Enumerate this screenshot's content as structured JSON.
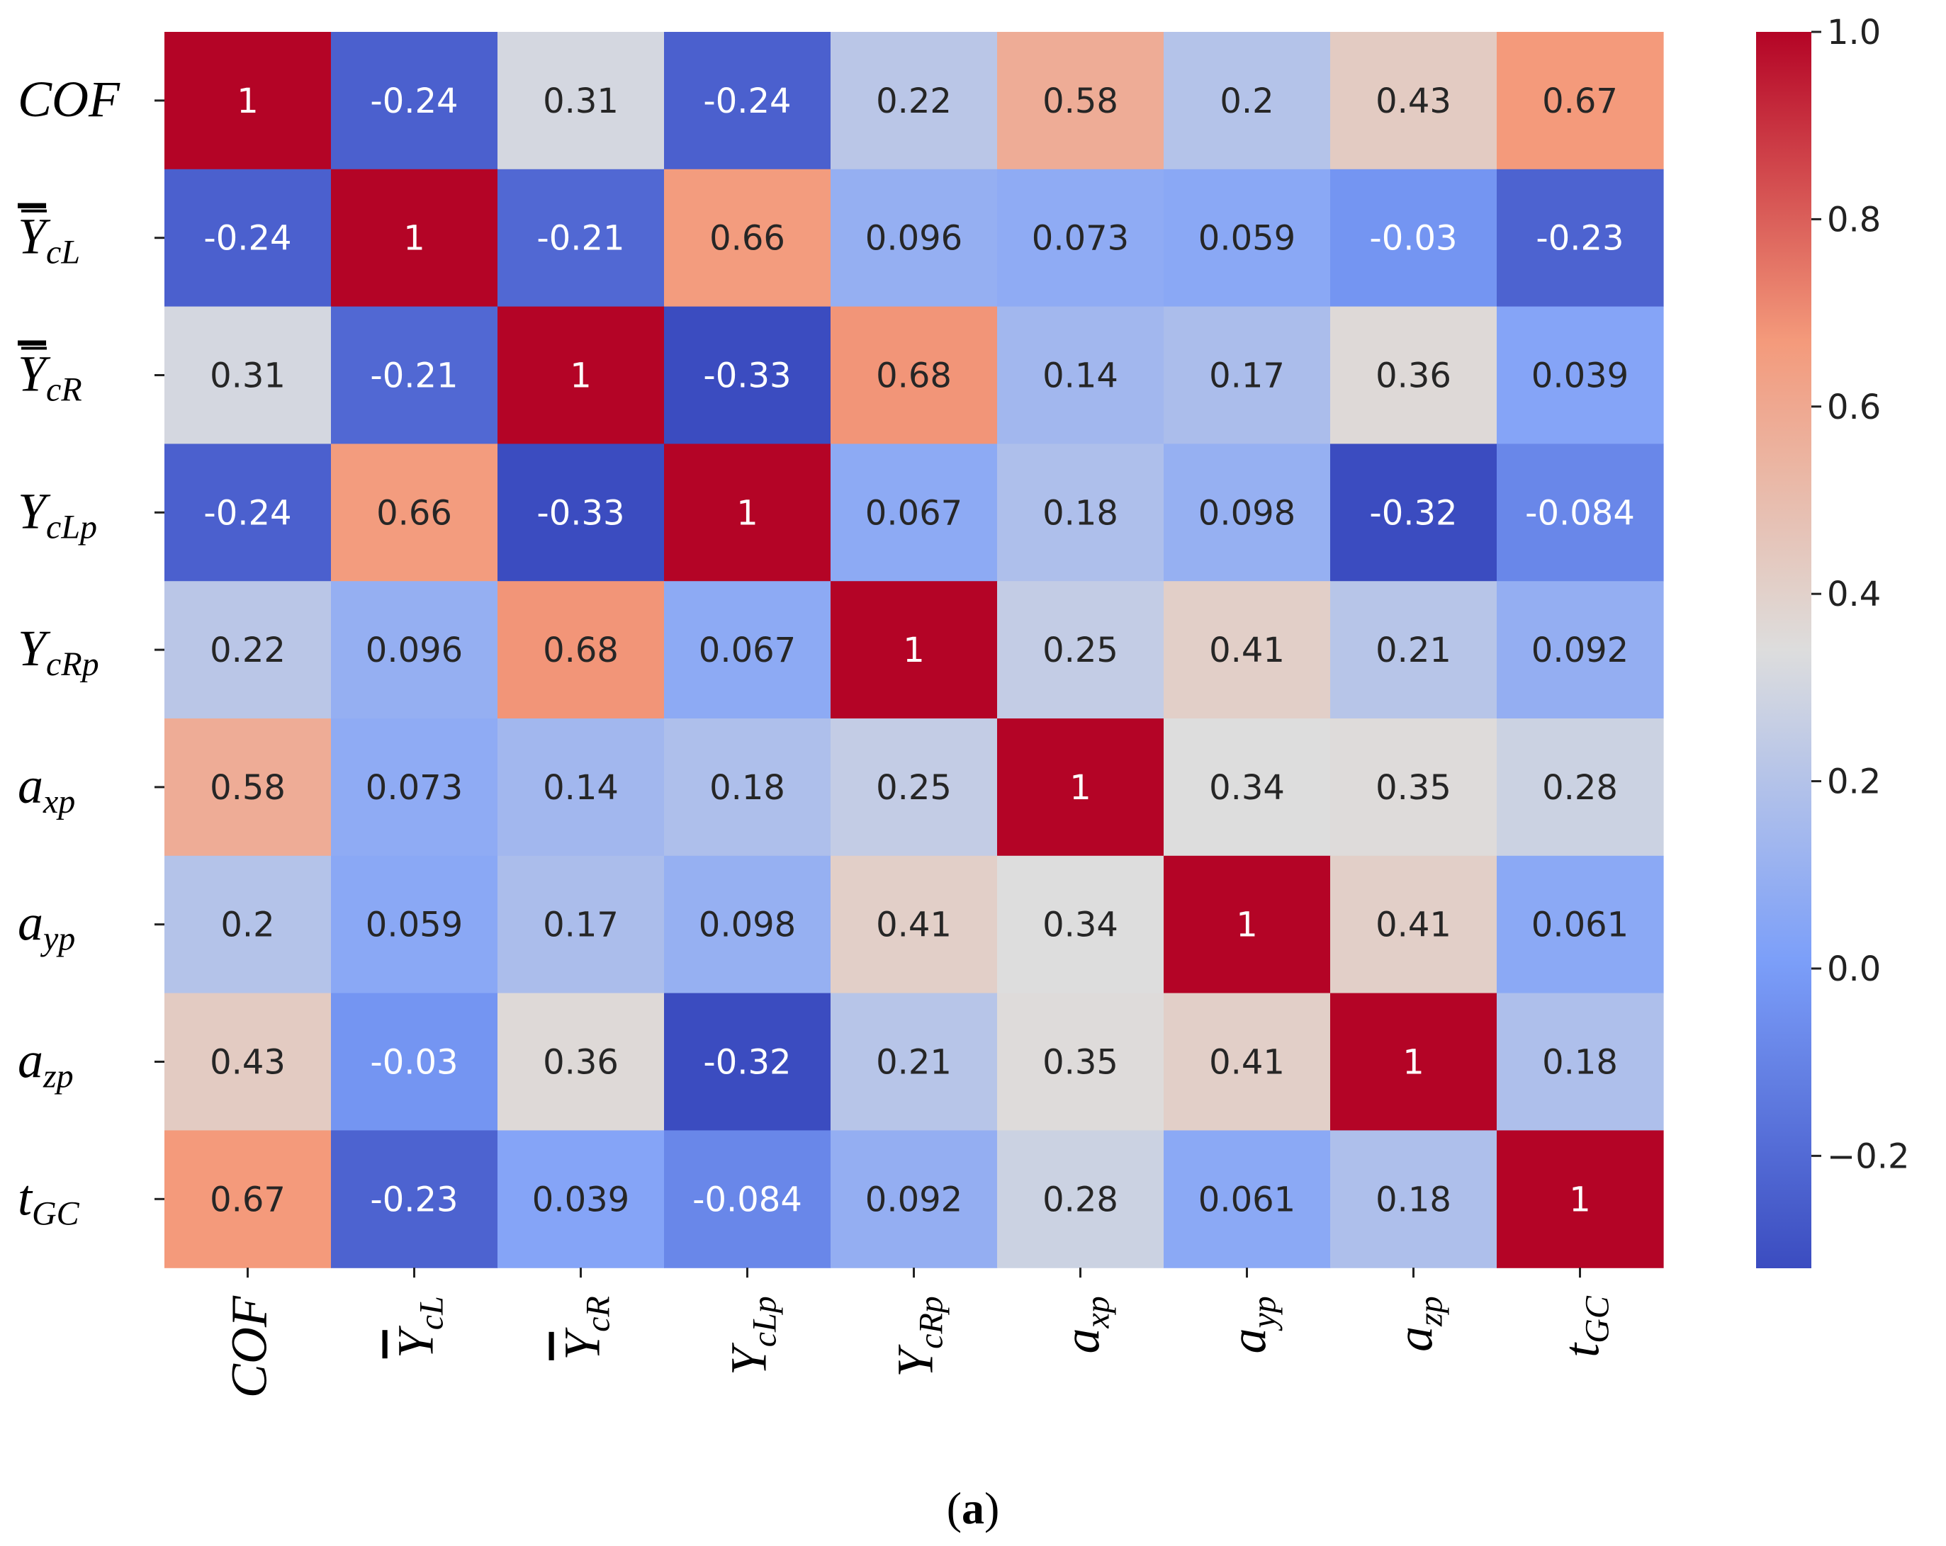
{
  "chart_data": {
    "type": "heatmap",
    "title": "",
    "colormap": "coolwarm",
    "vmin": -0.32,
    "vmax": 1.0,
    "row_labels": [
      {
        "base": "COF",
        "sub": "",
        "overline": false
      },
      {
        "base": "Y",
        "sub": "cL",
        "overline": true
      },
      {
        "base": "Y",
        "sub": "cR",
        "overline": true
      },
      {
        "base": "Y",
        "sub": "cLp",
        "overline": false
      },
      {
        "base": "Y",
        "sub": "cRp",
        "overline": false
      },
      {
        "base": "a",
        "sub": "xp",
        "overline": false
      },
      {
        "base": "a",
        "sub": "yp",
        "overline": false
      },
      {
        "base": "a",
        "sub": "zp",
        "overline": false
      },
      {
        "base": "t",
        "sub": "GC",
        "overline": false
      }
    ],
    "col_labels": [
      {
        "base": "COF",
        "sub": "",
        "overline": false
      },
      {
        "base": "Y",
        "sub": "cL",
        "overline": true
      },
      {
        "base": "Y",
        "sub": "cR",
        "overline": true
      },
      {
        "base": "Y",
        "sub": "cLp",
        "overline": false
      },
      {
        "base": "Y",
        "sub": "cRp",
        "overline": false
      },
      {
        "base": "a",
        "sub": "xp",
        "overline": false
      },
      {
        "base": "a",
        "sub": "yp",
        "overline": false
      },
      {
        "base": "a",
        "sub": "zp",
        "overline": false
      },
      {
        "base": "t",
        "sub": "GC",
        "overline": false
      }
    ],
    "values": [
      [
        1,
        -0.24,
        0.31,
        -0.24,
        0.22,
        0.58,
        0.2,
        0.43,
        0.67
      ],
      [
        -0.24,
        1,
        -0.21,
        0.66,
        0.096,
        0.073,
        0.059,
        -0.03,
        -0.23
      ],
      [
        0.31,
        -0.21,
        1,
        -0.33,
        0.68,
        0.14,
        0.17,
        0.36,
        0.039
      ],
      [
        -0.24,
        0.66,
        -0.33,
        1,
        0.067,
        0.18,
        0.098,
        -0.32,
        -0.084
      ],
      [
        0.22,
        0.096,
        0.68,
        0.067,
        1,
        0.25,
        0.41,
        0.21,
        0.092
      ],
      [
        0.58,
        0.073,
        0.14,
        0.18,
        0.25,
        1,
        0.34,
        0.35,
        0.28
      ],
      [
        0.2,
        0.059,
        0.17,
        0.098,
        0.41,
        0.34,
        1,
        0.41,
        0.061
      ],
      [
        0.43,
        -0.03,
        0.36,
        -0.32,
        0.21,
        0.35,
        0.41,
        1,
        0.18
      ],
      [
        0.67,
        -0.23,
        0.039,
        -0.084,
        0.092,
        0.28,
        0.061,
        0.18,
        1
      ]
    ],
    "value_labels": [
      [
        "1",
        "-0.24",
        "0.31",
        "-0.24",
        "0.22",
        "0.58",
        "0.2",
        "0.43",
        "0.67"
      ],
      [
        "-0.24",
        "1",
        "-0.21",
        "0.66",
        "0.096",
        "0.073",
        "0.059",
        "-0.03",
        "-0.23"
      ],
      [
        "0.31",
        "-0.21",
        "1",
        "-0.33",
        "0.68",
        "0.14",
        "0.17",
        "0.36",
        "0.039"
      ],
      [
        "-0.24",
        "0.66",
        "-0.33",
        "1",
        "0.067",
        "0.18",
        "0.098",
        "-0.32",
        "-0.084"
      ],
      [
        "0.22",
        "0.096",
        "0.68",
        "0.067",
        "1",
        "0.25",
        "0.41",
        "0.21",
        "0.092"
      ],
      [
        "0.58",
        "0.073",
        "0.14",
        "0.18",
        "0.25",
        "1",
        "0.34",
        "0.35",
        "0.28"
      ],
      [
        "0.2",
        "0.059",
        "0.17",
        "0.098",
        "0.41",
        "0.34",
        "1",
        "0.41",
        "0.061"
      ],
      [
        "0.43",
        "-0.03",
        "0.36",
        "-0.32",
        "0.21",
        "0.35",
        "0.41",
        "1",
        "0.18"
      ],
      [
        "0.67",
        "-0.23",
        "0.039",
        "-0.084",
        "0.092",
        "0.28",
        "0.061",
        "0.18",
        "1"
      ]
    ],
    "colorbar": {
      "ticks": [
        1.0,
        0.8,
        0.6,
        0.4,
        0.2,
        0.0,
        -0.2
      ],
      "tick_labels": [
        "1.0",
        "0.8",
        "0.6",
        "0.4",
        "0.2",
        "0.0",
        "−0.2"
      ]
    }
  },
  "caption": {
    "open": "(",
    "letter": "a",
    "close": ")"
  }
}
